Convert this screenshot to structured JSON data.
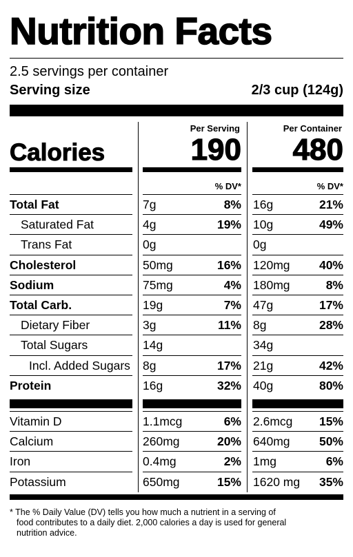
{
  "label": {
    "title": "Nutrition Facts",
    "servings_per_container": "2.5 servings per container",
    "serving_size_label": "Serving size",
    "serving_size_value": "2/3 cup (124g)",
    "col_per_serving": "Per Serving",
    "col_per_container": "Per Container",
    "calories_label": "Calories",
    "calories_per_serving": "190",
    "calories_per_container": "480",
    "dv_header": "% DV*",
    "nutrients": [
      {
        "name": "Total Fat",
        "bold": true,
        "indent": 0,
        "serv_amt": "7g",
        "serv_dv": "8%",
        "cont_amt": "16g",
        "cont_dv": "21%"
      },
      {
        "name": "Saturated Fat",
        "bold": false,
        "indent": 1,
        "serv_amt": "4g",
        "serv_dv": "19%",
        "cont_amt": "10g",
        "cont_dv": "49%"
      },
      {
        "name": "Trans Fat",
        "bold": false,
        "indent": 1,
        "serv_amt": "0g",
        "serv_dv": "",
        "cont_amt": "0g",
        "cont_dv": ""
      },
      {
        "name": "Cholesterol",
        "bold": true,
        "indent": 0,
        "serv_amt": "50mg",
        "serv_dv": "16%",
        "cont_amt": "120mg",
        "cont_dv": "40%"
      },
      {
        "name": "Sodium",
        "bold": true,
        "indent": 0,
        "serv_amt": "75mg",
        "serv_dv": "4%",
        "cont_amt": "180mg",
        "cont_dv": "8%"
      },
      {
        "name": "Total Carb.",
        "bold": true,
        "indent": 0,
        "serv_amt": "19g",
        "serv_dv": "7%",
        "cont_amt": "47g",
        "cont_dv": "17%"
      },
      {
        "name": "Dietary Fiber",
        "bold": false,
        "indent": 1,
        "serv_amt": "3g",
        "serv_dv": "11%",
        "cont_amt": "8g",
        "cont_dv": "28%"
      },
      {
        "name": "Total Sugars",
        "bold": false,
        "indent": 1,
        "serv_amt": "14g",
        "serv_dv": "",
        "cont_amt": "34g",
        "cont_dv": ""
      },
      {
        "name": "Incl. Added Sugars",
        "bold": false,
        "indent": 2,
        "serv_amt": "8g",
        "serv_dv": "17%",
        "cont_amt": "21g",
        "cont_dv": "42%"
      },
      {
        "name": "Protein",
        "bold": true,
        "indent": 0,
        "serv_amt": "16g",
        "serv_dv": "32%",
        "cont_amt": "40g",
        "cont_dv": "80%"
      }
    ],
    "vitamins": [
      {
        "name": "Vitamin D",
        "serv_amt": "1.1mcg",
        "serv_dv": "6%",
        "cont_amt": "2.6mcg",
        "cont_dv": "15%"
      },
      {
        "name": "Calcium",
        "serv_amt": "260mg",
        "serv_dv": "20%",
        "cont_amt": "640mg",
        "cont_dv": "50%"
      },
      {
        "name": "Iron",
        "serv_amt": "0.4mg",
        "serv_dv": "2%",
        "cont_amt": "1mg",
        "cont_dv": "6%"
      },
      {
        "name": "Potassium",
        "serv_amt": "650mg",
        "serv_dv": "15%",
        "cont_amt": "1620 mg",
        "cont_dv": "35%"
      }
    ],
    "footnote_line1": "* The % Daily Value (DV) tells you how much a nutrient in a serving of",
    "footnote_line2": "food contributes to a daily diet. 2,000 calories a day is used for general",
    "footnote_line3": "nutrition advice."
  }
}
